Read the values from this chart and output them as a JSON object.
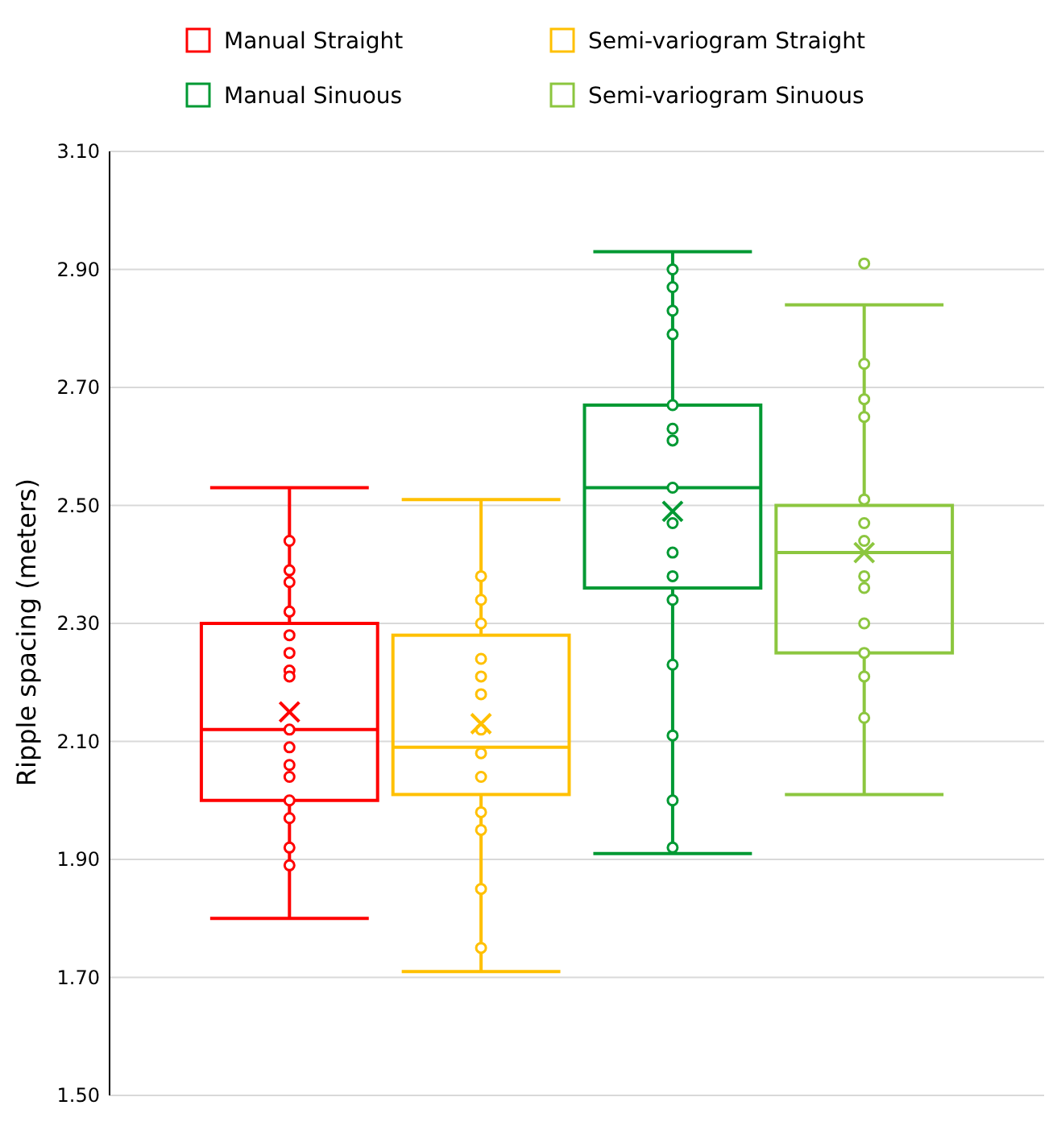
{
  "chart_data": {
    "type": "box",
    "ylabel": "Ripple spacing (meters)",
    "categories": [
      null
    ],
    "ylim": [
      1.5,
      3.1
    ],
    "yticks": [
      {
        "value": 1.5,
        "label": "1.50"
      },
      {
        "value": 1.7,
        "label": "1.70"
      },
      {
        "value": 1.9,
        "label": "1.90"
      },
      {
        "value": 2.1,
        "label": "2.10"
      },
      {
        "value": 2.3,
        "label": "2.30"
      },
      {
        "value": 2.5,
        "label": "2.50"
      },
      {
        "value": 2.7,
        "label": "2.70"
      },
      {
        "value": 2.9,
        "label": "2.90"
      },
      {
        "value": 3.1,
        "label": "3.10"
      }
    ],
    "grid": "y",
    "legend": "top",
    "marker": "circle",
    "series": [
      {
        "name": "Manual Straight",
        "color": "#ff0000",
        "boxes": [
          {
            "low": 1.8,
            "q1": 2.0,
            "median": 2.12,
            "q3": 2.3,
            "high": 2.53,
            "mean": 2.15,
            "outliers": [
              2.44,
              2.39,
              2.37,
              2.32,
              2.28,
              2.25,
              2.22,
              2.21,
              2.12,
              2.09,
              2.06,
              2.04,
              2.0,
              1.97,
              1.92,
              1.89
            ]
          }
        ]
      },
      {
        "name": "Semi-variogram Straight",
        "color": "#ffc000",
        "boxes": [
          {
            "low": 1.71,
            "q1": 2.01,
            "median": 2.09,
            "q3": 2.28,
            "high": 2.51,
            "mean": 2.13,
            "outliers": [
              2.38,
              2.34,
              2.3,
              2.24,
              2.21,
              2.18,
              2.12,
              2.08,
              2.04,
              1.98,
              1.95,
              1.85,
              1.75
            ]
          }
        ]
      },
      {
        "name": "Manual Sinuous",
        "color": "#009933",
        "boxes": [
          {
            "low": 1.91,
            "q1": 2.36,
            "median": 2.53,
            "q3": 2.67,
            "high": 2.93,
            "mean": 2.49,
            "outliers": [
              2.9,
              2.87,
              2.83,
              2.79,
              2.67,
              2.63,
              2.61,
              2.53,
              2.47,
              2.42,
              2.38,
              2.34,
              2.23,
              2.11,
              2.0,
              1.92
            ]
          }
        ]
      },
      {
        "name": "Semi-variogram Sinuous",
        "color": "#8cc63f",
        "boxes": [
          {
            "low": 2.01,
            "q1": 2.25,
            "median": 2.42,
            "q3": 2.5,
            "high": 2.84,
            "mean": 2.42,
            "outliers": [
              2.91,
              2.74,
              2.68,
              2.65,
              2.51,
              2.47,
              2.44,
              2.38,
              2.36,
              2.3,
              2.25,
              2.21,
              2.14
            ]
          }
        ]
      }
    ]
  }
}
